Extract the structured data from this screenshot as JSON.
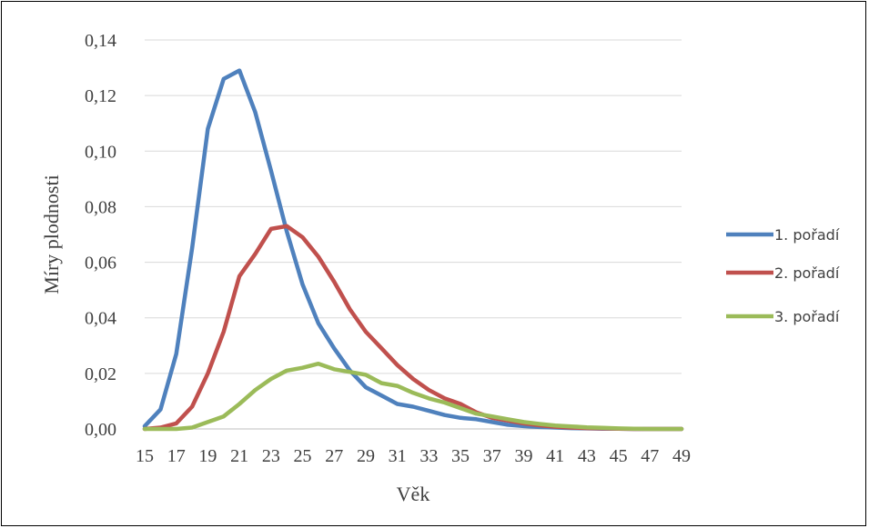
{
  "chart_data": {
    "type": "line",
    "xlabel": "Věk",
    "ylabel": "Míry plodnosti",
    "ylim": [
      0,
      0.14
    ],
    "y_ticks": [
      "0,00",
      "0,02",
      "0,04",
      "0,06",
      "0,08",
      "0,10",
      "0,12",
      "0,14"
    ],
    "x": [
      15,
      16,
      17,
      18,
      19,
      20,
      21,
      22,
      23,
      24,
      25,
      26,
      27,
      28,
      29,
      30,
      31,
      32,
      33,
      34,
      35,
      36,
      37,
      38,
      39,
      40,
      41,
      42,
      43,
      44,
      45,
      46,
      47,
      48,
      49
    ],
    "x_tick_labels": [
      "15",
      "17",
      "19",
      "21",
      "23",
      "25",
      "27",
      "29",
      "31",
      "33",
      "35",
      "37",
      "39",
      "41",
      "43",
      "45",
      "47",
      "49"
    ],
    "grid": true,
    "legend_position": "right",
    "series": [
      {
        "name": "1. pořadí",
        "color": "#4F81BD",
        "values": [
          0.001,
          0.007,
          0.027,
          0.065,
          0.108,
          0.126,
          0.129,
          0.114,
          0.093,
          0.071,
          0.052,
          0.038,
          0.029,
          0.021,
          0.015,
          0.012,
          0.009,
          0.008,
          0.0065,
          0.005,
          0.004,
          0.0035,
          0.0025,
          0.0015,
          0.001,
          0.0007,
          0.0005,
          0.0003,
          0.0002,
          0.0001,
          0.0001,
          0.0,
          0.0,
          0.0,
          0.0
        ]
      },
      {
        "name": "2. pořadí",
        "color": "#C0504D",
        "values": [
          0.0,
          0.0005,
          0.002,
          0.008,
          0.02,
          0.035,
          0.055,
          0.063,
          0.072,
          0.073,
          0.069,
          0.062,
          0.053,
          0.043,
          0.035,
          0.029,
          0.023,
          0.018,
          0.014,
          0.011,
          0.009,
          0.006,
          0.004,
          0.003,
          0.002,
          0.0013,
          0.0008,
          0.0005,
          0.0003,
          0.0002,
          0.0001,
          0.0,
          0.0,
          0.0,
          0.0
        ]
      },
      {
        "name": "3. pořadí",
        "color": "#9BBB59",
        "values": [
          0.0,
          0.0,
          0.0,
          0.0005,
          0.0025,
          0.0045,
          0.009,
          0.014,
          0.018,
          0.021,
          0.022,
          0.0235,
          0.0215,
          0.0205,
          0.0195,
          0.0165,
          0.0155,
          0.013,
          0.011,
          0.0095,
          0.0075,
          0.0055,
          0.0045,
          0.0035,
          0.0025,
          0.0018,
          0.0012,
          0.0009,
          0.0006,
          0.0004,
          0.0002,
          0.0001,
          0.0,
          0.0,
          0.0
        ]
      }
    ]
  }
}
